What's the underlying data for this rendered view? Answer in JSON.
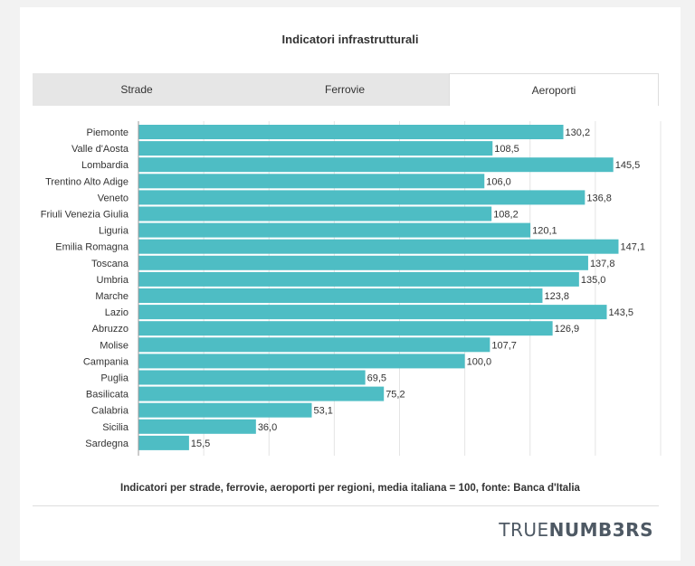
{
  "page": {
    "title": "Indicatori infrastrutturali",
    "tabs": [
      {
        "label": "Strade",
        "active": false
      },
      {
        "label": "Ferrovie",
        "active": false
      },
      {
        "label": "Aeroporti",
        "active": true
      }
    ],
    "caption": "Indicatori per strade, ferrovie, aeroporti per regioni, media italiana = 100, fonte: Banca d'Italia",
    "logo": {
      "part1": "TRUE",
      "part2": "NUMB3RS"
    }
  },
  "colors": {
    "bar": "#4ebdc4",
    "grid": "#e4e4e4"
  },
  "chart_data": {
    "type": "bar",
    "orientation": "horizontal",
    "title": "Indicatori infrastrutturali",
    "xlabel": "",
    "ylabel": "",
    "xlim": [
      0,
      160
    ],
    "grid": true,
    "categories": [
      "Piemonte",
      "Valle d'Aosta",
      "Lombardia",
      "Trentino Alto Adige",
      "Veneto",
      "Friuli Venezia Giulia",
      "Liguria",
      "Emilia Romagna",
      "Toscana",
      "Umbria",
      "Marche",
      "Lazio",
      "Abruzzo",
      "Molise",
      "Campania",
      "Puglia",
      "Basilicata",
      "Calabria",
      "Sicilia",
      "Sardegna"
    ],
    "values": [
      130.2,
      108.5,
      145.5,
      106.0,
      136.8,
      108.2,
      120.1,
      147.1,
      137.8,
      135.0,
      123.8,
      143.5,
      126.9,
      107.7,
      100.0,
      69.5,
      75.2,
      53.1,
      36.0,
      15.5
    ],
    "value_labels": [
      "130,2",
      "108,5",
      "145,5",
      "106,0",
      "136,8",
      "108,2",
      "120,1",
      "147,1",
      "137,8",
      "135,0",
      "123,8",
      "143,5",
      "126,9",
      "107,7",
      "100,0",
      "69,5",
      "75,2",
      "53,1",
      "36,0",
      "15,5"
    ]
  }
}
